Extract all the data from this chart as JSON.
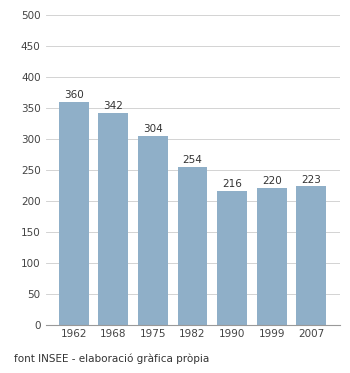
{
  "categories": [
    "1962",
    "1968",
    "1975",
    "1982",
    "1990",
    "1999",
    "2007"
  ],
  "values": [
    360,
    342,
    304,
    254,
    216,
    220,
    223
  ],
  "bar_color": "#8FAFC8",
  "ylim": [
    0,
    500
  ],
  "yticks": [
    0,
    50,
    100,
    150,
    200,
    250,
    300,
    350,
    400,
    450,
    500
  ],
  "footnote": "font INSEE - elaboració gràfica pròpia",
  "footnote_fontsize": 7.5,
  "label_fontsize": 7.5,
  "tick_fontsize": 7.5,
  "background_color": "#ffffff",
  "grid_color": "#cccccc",
  "bar_width": 0.75
}
